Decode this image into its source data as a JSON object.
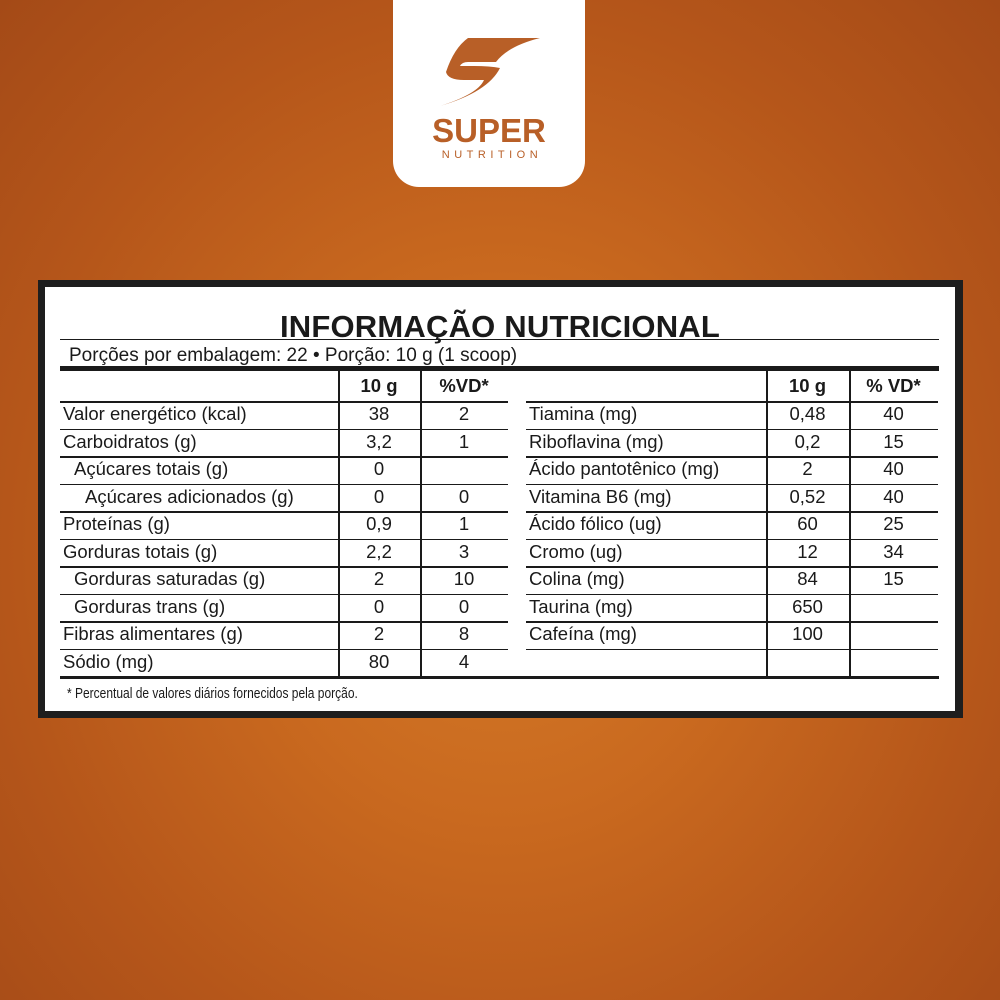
{
  "brand": {
    "name": "SUPER",
    "tagline": "NUTRITION",
    "logo_icon": "lightning-s-icon",
    "color": "#b85f27"
  },
  "label": {
    "title": "INFORMAÇÃO NUTRICIONAL",
    "serving": "Porções por embalagem: 22 • Porção: 10 g (1 scoop)",
    "left": {
      "headers": [
        "",
        "10 g",
        "%VD*"
      ],
      "rows": [
        {
          "name": "Valor energético (kcal)",
          "amount": "38",
          "vd": "2",
          "indent": 0
        },
        {
          "name": "Carboidratos (g)",
          "amount": "3,2",
          "vd": "1",
          "indent": 0
        },
        {
          "name": "Açúcares totais (g)",
          "amount": "0",
          "vd": "",
          "indent": 1
        },
        {
          "name": "Açúcares adicionados (g)",
          "amount": "0",
          "vd": "0",
          "indent": 2
        },
        {
          "name": "Proteínas (g)",
          "amount": "0,9",
          "vd": "1",
          "indent": 0
        },
        {
          "name": "Gorduras totais (g)",
          "amount": "2,2",
          "vd": "3",
          "indent": 0
        },
        {
          "name": "Gorduras saturadas (g)",
          "amount": "2",
          "vd": "10",
          "indent": 1
        },
        {
          "name": "Gorduras trans (g)",
          "amount": "0",
          "vd": "0",
          "indent": 1
        },
        {
          "name": "Fibras alimentares (g)",
          "amount": "2",
          "vd": "8",
          "indent": 0
        },
        {
          "name": "Sódio (mg)",
          "amount": "80",
          "vd": "4",
          "indent": 0
        }
      ]
    },
    "right": {
      "headers": [
        "",
        "10 g",
        "% VD*"
      ],
      "rows": [
        {
          "name": "Tiamina (mg)",
          "amount": "0,48",
          "vd": "40"
        },
        {
          "name": "Riboflavina (mg)",
          "amount": "0,2",
          "vd": "15"
        },
        {
          "name": "Ácido pantotênico (mg)",
          "amount": "2",
          "vd": "40"
        },
        {
          "name": "Vitamina B6 (mg)",
          "amount": "0,52",
          "vd": "40"
        },
        {
          "name": "Ácido fólico (ug)",
          "amount": "60",
          "vd": "25"
        },
        {
          "name": "Cromo (ug)",
          "amount": "12",
          "vd": "34"
        },
        {
          "name": "Colina (mg)",
          "amount": "84",
          "vd": "15"
        },
        {
          "name": "Taurina (mg)",
          "amount": "650",
          "vd": ""
        },
        {
          "name": "Cafeína (mg)",
          "amount": "100",
          "vd": ""
        },
        {
          "name": "",
          "amount": "",
          "vd": ""
        }
      ]
    },
    "footnote": "* Percentual de valores diários fornecidos pela porção."
  }
}
